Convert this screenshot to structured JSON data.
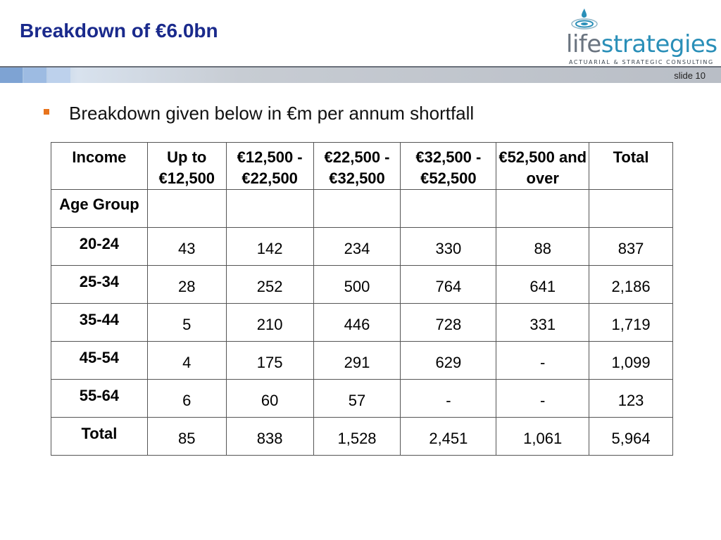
{
  "slide": {
    "title": "Breakdown of €6.0bn",
    "number": "slide 10"
  },
  "logo": {
    "part1": "life",
    "part2": "strategies",
    "tagline": "ACTUARIAL & STRATEGIC CONSULTING",
    "icon": "water-drop-ripple-icon",
    "colors": {
      "grey": "#6a7480",
      "blue": "#2a8fb8"
    }
  },
  "bullet": {
    "text": "Breakdown given below in €m per annum shortfall",
    "color": "#e8741c"
  },
  "colors": {
    "title": "#1a2a8c"
  },
  "table": {
    "headers": [
      "Income",
      "Up to €12,500",
      "€12,500 - €22,500",
      "€22,500 - €32,500",
      "€32,500 - €52,500",
      "€52,500 and over",
      "Total"
    ],
    "subheader": "Age Group",
    "rows": [
      {
        "label": "20-24",
        "values": [
          "43",
          "142",
          "234",
          "330",
          "88",
          "837"
        ]
      },
      {
        "label": "25-34",
        "values": [
          "28",
          "252",
          "500",
          "764",
          "641",
          "2,186"
        ]
      },
      {
        "label": "35-44",
        "values": [
          "5",
          "210",
          "446",
          "728",
          "331",
          "1,719"
        ]
      },
      {
        "label": "45-54",
        "values": [
          "4",
          "175",
          "291",
          "629",
          "-",
          "1,099"
        ]
      },
      {
        "label": "55-64",
        "values": [
          "6",
          "60",
          "57",
          "-",
          "-",
          "123"
        ]
      },
      {
        "label": "Total",
        "values": [
          "85",
          "838",
          "1,528",
          "2,451",
          "1,061",
          "5,964"
        ]
      }
    ]
  }
}
